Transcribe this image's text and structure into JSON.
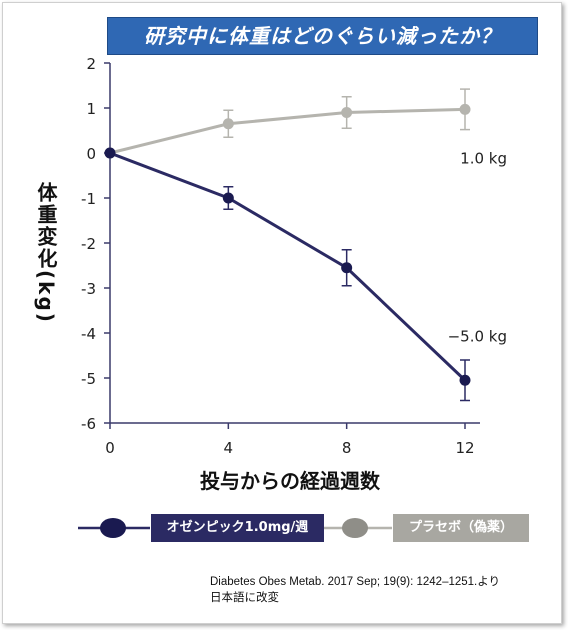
{
  "title": "研究中に体重はどのぐらい減ったか？",
  "legend": {
    "ozempic": "オゼンピック1.0mg/週",
    "placebo": "プラセボ（偽薬）"
  },
  "source": {
    "line1": "Diabetes Obes Metab. 2017 Sep; 19(9): 1242–1251.より",
    "line2": "日本語に改変"
  },
  "colors": {
    "ozempic": "#2b2a63",
    "placebo": "#b5b4ae",
    "axis": "#3a3a6a",
    "title_bg": "#2f68b4"
  },
  "chart_data": {
    "type": "line",
    "xlabel": "投与からの経過週数",
    "ylabel": "体重変化(kg)",
    "xlim": [
      0,
      12
    ],
    "ylim": [
      -6,
      2
    ],
    "xticks": [
      0,
      4,
      8,
      12
    ],
    "yticks": [
      2,
      1,
      0,
      -1,
      -2,
      -3,
      -4,
      -5,
      -6
    ],
    "x": [
      0,
      4,
      8,
      12
    ],
    "series": [
      {
        "name": "プラセボ（偽薬）",
        "values": [
          0,
          0.65,
          0.9,
          0.97
        ],
        "error": [
          0,
          0.3,
          0.35,
          0.45
        ],
        "end_label": "1.0 kg"
      },
      {
        "name": "オゼンピック1.0mg/週",
        "values": [
          0,
          -1.0,
          -2.55,
          -5.05
        ],
        "error": [
          0,
          0.25,
          0.4,
          0.45
        ],
        "end_label": "−5.0 kg"
      }
    ],
    "grid": false
  }
}
